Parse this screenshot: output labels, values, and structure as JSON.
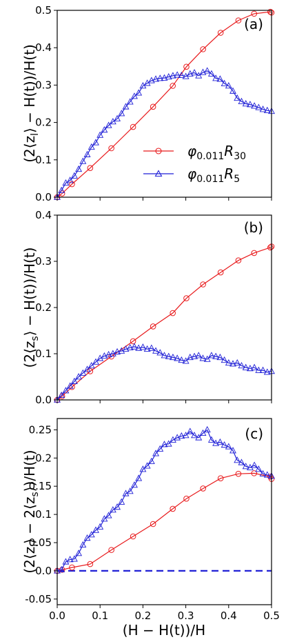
{
  "chart_data": [
    {
      "panel": "(a)",
      "type": "line",
      "ylabel": "(2⟨z_l⟩ − H(t))/H(t)",
      "xlim": [
        0,
        0.5
      ],
      "ylim": [
        0,
        0.5
      ],
      "xticks": [
        "0.0",
        "0.1",
        "0.2",
        "0.3",
        "0.4",
        "0.5"
      ],
      "yticks": [
        "0.0",
        "0.1",
        "0.2",
        "0.3",
        "0.4",
        "0.5"
      ],
      "show_xticklabels": false,
      "legend": "lower-right",
      "series": [
        {
          "name": "φ0.011R30",
          "color": "#e8191b",
          "marker": "circle",
          "x": [
            0.0,
            0.0115,
            0.0345,
            0.0769,
            0.1264,
            0.177,
            0.2237,
            0.2696,
            0.3014,
            0.3403,
            0.3813,
            0.4227,
            0.4594,
            0.4973,
            0.5
          ],
          "y": [
            0.0,
            0.01,
            0.035,
            0.078,
            0.131,
            0.188,
            0.242,
            0.298,
            0.349,
            0.396,
            0.44,
            0.473,
            0.491,
            0.496,
            0.494
          ]
        },
        {
          "name": "φ0.011R5",
          "color": "#1f1fd6",
          "marker": "triangle",
          "x": [
            0.0,
            0.01,
            0.02,
            0.03,
            0.04,
            0.05,
            0.06,
            0.07,
            0.08,
            0.09,
            0.1,
            0.11,
            0.12,
            0.13,
            0.14,
            0.15,
            0.16,
            0.17,
            0.18,
            0.19,
            0.2,
            0.21,
            0.22,
            0.23,
            0.24,
            0.25,
            0.26,
            0.27,
            0.28,
            0.29,
            0.3,
            0.31,
            0.32,
            0.33,
            0.34,
            0.35,
            0.36,
            0.37,
            0.38,
            0.39,
            0.4,
            0.41,
            0.42,
            0.43,
            0.44,
            0.45,
            0.46,
            0.47,
            0.48,
            0.49,
            0.5
          ],
          "y": [
            0.0,
            0.018,
            0.038,
            0.045,
            0.057,
            0.075,
            0.096,
            0.114,
            0.134,
            0.146,
            0.166,
            0.18,
            0.192,
            0.202,
            0.21,
            0.224,
            0.242,
            0.255,
            0.27,
            0.279,
            0.298,
            0.305,
            0.312,
            0.316,
            0.318,
            0.319,
            0.322,
            0.325,
            0.327,
            0.326,
            0.323,
            0.33,
            0.333,
            0.325,
            0.334,
            0.338,
            0.33,
            0.318,
            0.316,
            0.304,
            0.298,
            0.284,
            0.265,
            0.256,
            0.25,
            0.248,
            0.244,
            0.24,
            0.235,
            0.232,
            0.23
          ]
        }
      ]
    },
    {
      "panel": "(b)",
      "type": "line",
      "ylabel": "(2⟨z_s⟩ − H(t))/H(t)",
      "xlim": [
        0,
        0.5
      ],
      "ylim": [
        0,
        0.4
      ],
      "xticks": [
        "0.0",
        "0.1",
        "0.2",
        "0.3",
        "0.4",
        "0.5"
      ],
      "yticks": [
        "0.0",
        "0.1",
        "0.2",
        "0.3",
        "0.4"
      ],
      "show_xticklabels": false,
      "series": [
        {
          "name": "φ0.011R30",
          "color": "#e8191b",
          "marker": "circle",
          "x": [
            0.0,
            0.0115,
            0.0345,
            0.0769,
            0.1264,
            0.177,
            0.2237,
            0.2696,
            0.3014,
            0.3403,
            0.3813,
            0.4227,
            0.4594,
            0.4973,
            0.5
          ],
          "y": [
            0.0,
            0.008,
            0.028,
            0.062,
            0.094,
            0.127,
            0.159,
            0.188,
            0.22,
            0.25,
            0.276,
            0.302,
            0.318,
            0.33,
            0.332
          ]
        },
        {
          "name": "φ0.011R5",
          "color": "#1f1fd6",
          "marker": "triangle",
          "x": [
            0.0,
            0.01,
            0.02,
            0.03,
            0.04,
            0.05,
            0.06,
            0.07,
            0.08,
            0.09,
            0.1,
            0.11,
            0.12,
            0.13,
            0.14,
            0.15,
            0.16,
            0.17,
            0.18,
            0.19,
            0.2,
            0.21,
            0.22,
            0.23,
            0.24,
            0.25,
            0.26,
            0.27,
            0.28,
            0.29,
            0.3,
            0.31,
            0.32,
            0.33,
            0.34,
            0.35,
            0.36,
            0.37,
            0.38,
            0.39,
            0.4,
            0.41,
            0.42,
            0.43,
            0.44,
            0.45,
            0.46,
            0.47,
            0.48,
            0.49,
            0.5
          ],
          "y": [
            0.0,
            0.01,
            0.02,
            0.03,
            0.04,
            0.05,
            0.058,
            0.066,
            0.074,
            0.082,
            0.09,
            0.095,
            0.098,
            0.1,
            0.104,
            0.106,
            0.11,
            0.113,
            0.115,
            0.112,
            0.114,
            0.11,
            0.112,
            0.106,
            0.102,
            0.096,
            0.094,
            0.092,
            0.09,
            0.086,
            0.084,
            0.092,
            0.094,
            0.096,
            0.09,
            0.088,
            0.096,
            0.094,
            0.092,
            0.086,
            0.08,
            0.078,
            0.08,
            0.074,
            0.07,
            0.068,
            0.07,
            0.064,
            0.064,
            0.06,
            0.062
          ]
        }
      ]
    },
    {
      "panel": "(c)",
      "type": "line",
      "ylabel": "(2⟨z_l⟩ − 2⟨z_s⟩)/H(t)",
      "xlabel": "(H − H(t))/H",
      "xlim": [
        0,
        0.5
      ],
      "ylim": [
        -0.06,
        0.27
      ],
      "xticks": [
        "0.0",
        "0.1",
        "0.2",
        "0.3",
        "0.4",
        "0.5"
      ],
      "yticks": [
        "-0.05",
        "0.0",
        "0.05",
        "0.1",
        "0.15",
        "0.2",
        "0.25"
      ],
      "show_xticklabels": true,
      "reference_line": {
        "y": 0.0,
        "color": "#1f1fd6",
        "style": "dashed"
      },
      "series": [
        {
          "name": "φ0.011R30",
          "color": "#e8191b",
          "marker": "circle",
          "x": [
            0.0,
            0.0115,
            0.0345,
            0.0769,
            0.1264,
            0.177,
            0.2237,
            0.2696,
            0.3014,
            0.3403,
            0.3813,
            0.4227,
            0.4594,
            0.4973,
            0.5
          ],
          "y": [
            0.0,
            0.002,
            0.006,
            0.012,
            0.037,
            0.061,
            0.083,
            0.11,
            0.128,
            0.146,
            0.164,
            0.172,
            0.173,
            0.167,
            0.163
          ]
        },
        {
          "name": "φ0.011R5",
          "color": "#1f1fd6",
          "marker": "triangle",
          "x": [
            0.0,
            0.01,
            0.02,
            0.03,
            0.04,
            0.05,
            0.06,
            0.07,
            0.08,
            0.09,
            0.1,
            0.11,
            0.12,
            0.13,
            0.14,
            0.15,
            0.16,
            0.17,
            0.18,
            0.19,
            0.2,
            0.21,
            0.22,
            0.23,
            0.24,
            0.25,
            0.26,
            0.27,
            0.28,
            0.29,
            0.3,
            0.31,
            0.32,
            0.33,
            0.34,
            0.35,
            0.36,
            0.37,
            0.38,
            0.39,
            0.4,
            0.41,
            0.42,
            0.43,
            0.44,
            0.45,
            0.46,
            0.47,
            0.48,
            0.49,
            0.5
          ],
          "y": [
            0.0,
            0.002,
            0.016,
            0.02,
            0.021,
            0.031,
            0.046,
            0.058,
            0.064,
            0.072,
            0.078,
            0.092,
            0.098,
            0.108,
            0.113,
            0.122,
            0.137,
            0.141,
            0.152,
            0.164,
            0.18,
            0.186,
            0.194,
            0.208,
            0.216,
            0.224,
            0.225,
            0.232,
            0.236,
            0.239,
            0.24,
            0.247,
            0.24,
            0.236,
            0.244,
            0.25,
            0.232,
            0.226,
            0.228,
            0.223,
            0.22,
            0.213,
            0.196,
            0.192,
            0.185,
            0.183,
            0.187,
            0.18,
            0.172,
            0.17,
            0.168
          ]
        }
      ]
    }
  ],
  "panels": [
    {
      "tag": "(a)",
      "ylabel_main": "(2⟨z",
      "ylabel_sub": "l",
      "ylabel_tail": "⟩ − H(t))/H(t)"
    },
    {
      "tag": "(b)",
      "ylabel_main": "(2⟨z",
      "ylabel_sub": "s",
      "ylabel_tail": "⟩ − H(t))/H(t)"
    },
    {
      "tag": "(c)",
      "ylabel_main": "(2⟨z",
      "ylabel_sub": "l",
      "ylabel_mid": "⟩ − 2⟨z",
      "ylabel_sub2": "s",
      "ylabel_tail": "⟩)/H(t)"
    }
  ],
  "xlabel": "(H − H(t))/H",
  "legend": [
    {
      "phi": "φ",
      "phi_sub": "0.011",
      "r": "R",
      "r_sub": "30"
    },
    {
      "phi": "φ",
      "phi_sub": "0.011",
      "r": "R",
      "r_sub": "5"
    }
  ]
}
